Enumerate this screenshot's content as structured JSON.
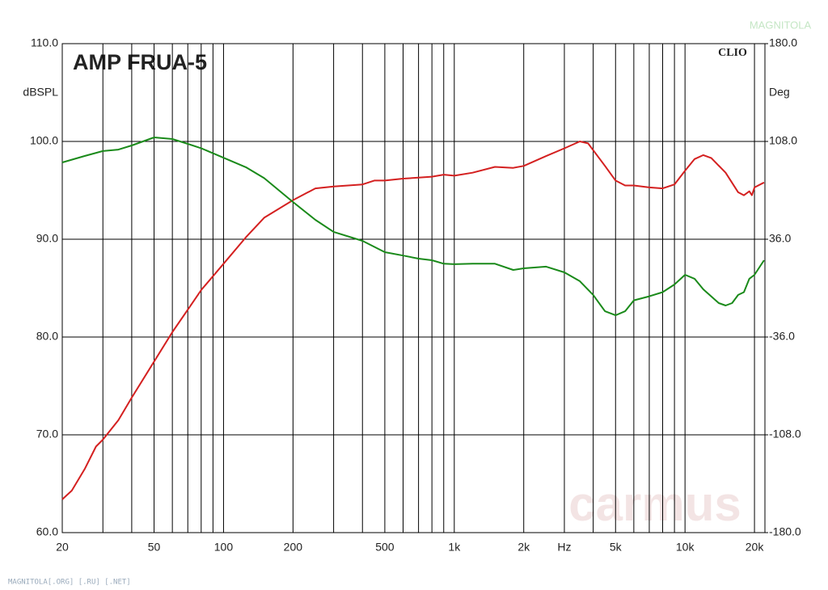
{
  "chart_data": {
    "type": "line",
    "title": "AMP FRUA-5",
    "brand": "CLIO",
    "ylabel": "dBSPL",
    "y2label": "Deg",
    "watermark": "carmus",
    "logo": "MAGNITOLA",
    "footer": "MAGNITOLA[.ORG] [.RU] [.NET]",
    "xlog": true,
    "grid": true,
    "xlim": [
      20,
      22200
    ],
    "ylim": [
      60,
      110
    ],
    "y2lim": [
      -180,
      180
    ],
    "xticks": [
      20,
      50,
      100,
      200,
      500,
      {
        "value": 1000,
        "label": "1k"
      },
      {
        "value": 2000,
        "label": "2k"
      },
      {
        "value": 3000,
        "label": "Hz"
      },
      {
        "value": 5000,
        "label": "5k"
      },
      {
        "value": 10000,
        "label": "10k"
      },
      {
        "value": 20000,
        "label": "20k"
      }
    ],
    "x_minor_grid": [
      30,
      40,
      60,
      70,
      80,
      90,
      300,
      400,
      600,
      700,
      800,
      900,
      4000,
      6000,
      7000,
      8000,
      9000
    ],
    "yticks": [
      {
        "value": 60,
        "label": "60.0"
      },
      {
        "value": 70,
        "label": "70.0"
      },
      {
        "value": 80,
        "label": "80.0"
      },
      {
        "value": 90,
        "label": "90.0"
      },
      {
        "value": 100,
        "label": "100.0"
      },
      {
        "value": 110,
        "label": "110.0"
      }
    ],
    "y2ticks": [
      {
        "value": -180,
        "label": "-180.0"
      },
      {
        "value": -108,
        "label": "-108.0"
      },
      {
        "value": -36,
        "label": "-36.0"
      },
      {
        "value": 36,
        "label": "36.0"
      },
      {
        "value": 108,
        "label": "108.0"
      },
      {
        "value": 180,
        "label": "180.0"
      }
    ],
    "series": [
      {
        "color": "#d42020",
        "x": [
          20,
          22,
          25,
          28,
          30,
          35,
          40,
          50,
          60,
          70,
          80,
          100,
          125,
          150,
          200,
          250,
          300,
          400,
          450,
          500,
          600,
          700,
          800,
          900,
          1000,
          1200,
          1500,
          1800,
          2000,
          2500,
          3000,
          3500,
          3800,
          4500,
          5000,
          5500,
          6000,
          7000,
          8000,
          9000,
          10000,
          11000,
          12000,
          13000,
          15000,
          17000,
          18000,
          19000,
          19500,
          20000,
          22000
        ],
        "values": [
          63.4,
          64.3,
          66.5,
          68.8,
          69.5,
          71.5,
          73.8,
          77.5,
          80.5,
          82.8,
          84.8,
          87.5,
          90.2,
          92.2,
          94.0,
          95.2,
          95.4,
          95.6,
          96.0,
          96.0,
          96.2,
          96.3,
          96.4,
          96.6,
          96.5,
          96.8,
          97.4,
          97.3,
          97.5,
          98.5,
          99.3,
          100.0,
          99.8,
          97.5,
          96.0,
          95.5,
          95.5,
          95.3,
          95.2,
          95.6,
          97.0,
          98.2,
          98.6,
          98.3,
          96.8,
          94.8,
          94.5,
          94.9,
          94.5,
          95.3,
          95.8
        ]
      },
      {
        "color": "#1a8a1a",
        "axis": "y2",
        "x": [
          20,
          25,
          30,
          35,
          40,
          50,
          60,
          70,
          80,
          100,
          125,
          150,
          200,
          250,
          300,
          400,
          500,
          600,
          700,
          800,
          900,
          1000,
          1200,
          1500,
          1800,
          2000,
          2500,
          3000,
          3500,
          4000,
          4500,
          5000,
          5500,
          6000,
          7000,
          8000,
          9000,
          10000,
          11000,
          12000,
          14000,
          15000,
          16000,
          17000,
          18000,
          19000,
          20000,
          22000
        ],
        "values": [
          92.5,
          97.3,
          100.9,
          102,
          105,
          111,
          109.8,
          106.2,
          103,
          96,
          89,
          81,
          63.4,
          50.3,
          41.4,
          34.8,
          26.5,
          24,
          21.7,
          20.5,
          18,
          17.6,
          18,
          18,
          13.4,
          14.6,
          15.8,
          11.6,
          5.1,
          -5,
          -17,
          -20,
          -17,
          -9,
          -6,
          -3,
          2.7,
          9.8,
          6.9,
          -0.9,
          -11,
          -12.8,
          -11,
          -5,
          -3,
          6.9,
          9.8,
          20.5
        ]
      }
    ]
  }
}
